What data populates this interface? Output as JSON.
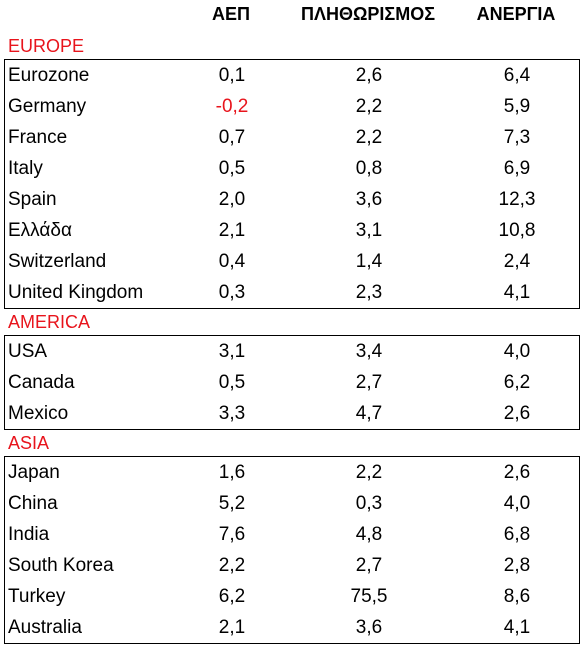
{
  "headers": {
    "gdp": "ΑΕΠ",
    "inflation": "ΠΛΗΘΩΡΙΣΜΟΣ",
    "unemployment": "ΑΝΕΡΓΙΑ"
  },
  "colors": {
    "region_label": "#e8141c",
    "negative_value": "#e8141c",
    "text": "#000000",
    "border": "#000000"
  },
  "regions": [
    {
      "name": "EUROPE",
      "rows": [
        {
          "country": "Eurozone",
          "gdp": "0,1",
          "inflation": "2,6",
          "unemployment": "6,4"
        },
        {
          "country": "Germany",
          "gdp": "-0,2",
          "inflation": "2,2",
          "unemployment": "5,9"
        },
        {
          "country": "France",
          "gdp": "0,7",
          "inflation": "2,2",
          "unemployment": "7,3"
        },
        {
          "country": "Italy",
          "gdp": "0,5",
          "inflation": "0,8",
          "unemployment": "6,9"
        },
        {
          "country": "Spain",
          "gdp": "2,0",
          "inflation": "3,6",
          "unemployment": "12,3"
        },
        {
          "country": "Ελλάδα",
          "gdp": "2,1",
          "inflation": "3,1",
          "unemployment": "10,8"
        },
        {
          "country": "Switzerland",
          "gdp": "0,4",
          "inflation": "1,4",
          "unemployment": "2,4"
        },
        {
          "country": "United Kingdom",
          "gdp": "0,3",
          "inflation": "2,3",
          "unemployment": "4,1"
        }
      ]
    },
    {
      "name": "AMERICA",
      "rows": [
        {
          "country": "USA",
          "gdp": "3,1",
          "inflation": "3,4",
          "unemployment": "4,0"
        },
        {
          "country": "Canada",
          "gdp": "0,5",
          "inflation": "2,7",
          "unemployment": "6,2"
        },
        {
          "country": "Mexico",
          "gdp": "3,3",
          "inflation": "4,7",
          "unemployment": "2,6"
        }
      ]
    },
    {
      "name": "ASIA",
      "rows": [
        {
          "country": "Japan",
          "gdp": "1,6",
          "inflation": "2,2",
          "unemployment": "2,6"
        },
        {
          "country": "China",
          "gdp": "5,2",
          "inflation": "0,3",
          "unemployment": "4,0"
        },
        {
          "country": "India",
          "gdp": "7,6",
          "inflation": "4,8",
          "unemployment": "6,8"
        },
        {
          "country": "South Korea",
          "gdp": "2,2",
          "inflation": "2,7",
          "unemployment": "2,8"
        },
        {
          "country": "Turkey",
          "gdp": "6,2",
          "inflation": "75,5",
          "unemployment": "8,6"
        },
        {
          "country": "Australia",
          "gdp": "2,1",
          "inflation": "3,6",
          "unemployment": "4,1"
        }
      ]
    }
  ]
}
